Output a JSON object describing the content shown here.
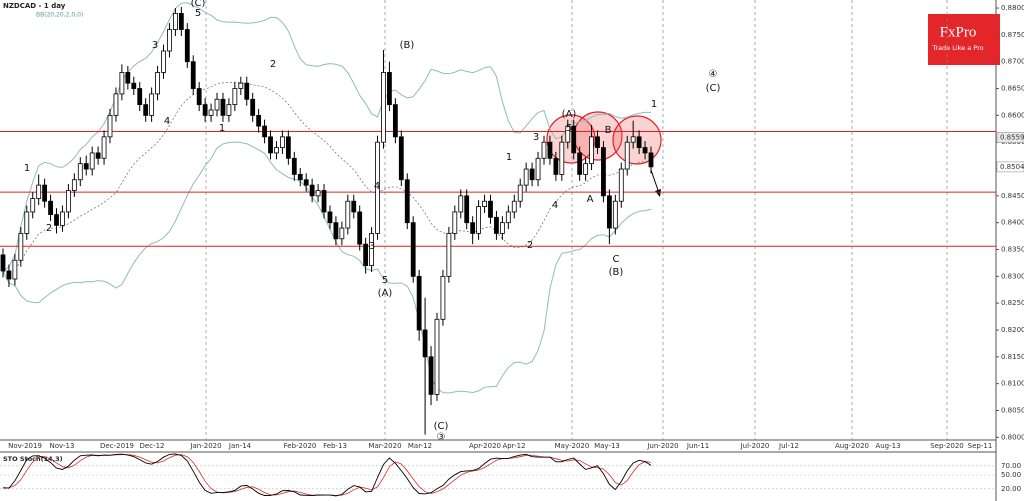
{
  "chart_data": {
    "type": "candlestick",
    "title": "NZDCAD - 1 day",
    "indicator": "BB(20,20,2,0,0)",
    "brand": "FxPro",
    "slogan": "Trade Like a Pro",
    "ylim": [
      0.7995,
      0.8815
    ],
    "yticks": [
      {
        "value": 0.88,
        "label": "0.8800"
      },
      {
        "value": 0.875,
        "label": "0.8750"
      },
      {
        "value": 0.87,
        "label": "0.8700"
      },
      {
        "value": 0.865,
        "label": "0.8650"
      },
      {
        "value": 0.86,
        "label": "0.8600"
      },
      {
        "value": 0.855,
        "label": "0.8550"
      },
      {
        "value": 0.85,
        "label": "0.8500"
      },
      {
        "value": 0.845,
        "label": "0.8450"
      },
      {
        "value": 0.84,
        "label": "0.8400"
      },
      {
        "value": 0.835,
        "label": "0.8350"
      },
      {
        "value": 0.83,
        "label": "0.8300"
      },
      {
        "value": 0.825,
        "label": "0.8250"
      },
      {
        "value": 0.82,
        "label": "0.8200"
      },
      {
        "value": 0.815,
        "label": "0.8150"
      },
      {
        "value": 0.81,
        "label": "0.8100"
      },
      {
        "value": 0.805,
        "label": "0.8050"
      },
      {
        "value": 0.8,
        "label": "0.8000"
      }
    ],
    "price_markers": [
      0.8559,
      0.8504
    ],
    "levels": [
      0.857,
      0.8457,
      0.8356
    ],
    "x_labels": [
      "Nov-2019",
      "Nov-13",
      "Dec-2019",
      "Dec-12",
      "Jan-2020",
      "Jan-14",
      "Feb-2020",
      "Feb-13",
      "Mar-2020",
      "Mar-12",
      "Apr-2020",
      "Apr-12",
      "May-2020",
      "May-13",
      "Jun-2020",
      "Jun-11",
      "Jul-2020",
      "Jul-12",
      "Aug-2020",
      "Aug-13",
      "Sep-2020",
      "Sep-11"
    ],
    "wave_labels": [
      "(C)",
      "5",
      "3",
      "4",
      "1",
      "2",
      "2",
      "1",
      "(B)",
      "4",
      "3",
      "5",
      "(A)",
      "(C)",
      "③",
      "1",
      "2",
      "3",
      "(A)",
      "5",
      "4",
      "A",
      "B",
      "C",
      "(B)",
      "1",
      "④",
      "(C)"
    ],
    "ohlc": [
      [
        0.834,
        0.8352,
        0.8298,
        0.831
      ],
      [
        0.831,
        0.8322,
        0.828,
        0.8295
      ],
      [
        0.8295,
        0.8342,
        0.8283,
        0.833
      ],
      [
        0.833,
        0.8392,
        0.8318,
        0.838
      ],
      [
        0.838,
        0.8432,
        0.8368,
        0.842
      ],
      [
        0.842,
        0.8457,
        0.8408,
        0.8445
      ],
      [
        0.8445,
        0.849,
        0.8433,
        0.847
      ],
      [
        0.847,
        0.8482,
        0.8428,
        0.844
      ],
      [
        0.844,
        0.8452,
        0.8403,
        0.8415
      ],
      [
        0.8415,
        0.8427,
        0.838,
        0.8395
      ],
      [
        0.8395,
        0.8432,
        0.8383,
        0.842
      ],
      [
        0.842,
        0.8472,
        0.8408,
        0.846
      ],
      [
        0.846,
        0.8492,
        0.8448,
        0.848
      ],
      [
        0.848,
        0.8522,
        0.8468,
        0.851
      ],
      [
        0.851,
        0.8525,
        0.8488,
        0.85
      ],
      [
        0.85,
        0.8542,
        0.8488,
        0.853
      ],
      [
        0.853,
        0.8542,
        0.8508,
        0.852
      ],
      [
        0.852,
        0.8572,
        0.8508,
        0.856
      ],
      [
        0.856,
        0.8612,
        0.8548,
        0.86
      ],
      [
        0.86,
        0.8652,
        0.8588,
        0.864
      ],
      [
        0.864,
        0.8695,
        0.8628,
        0.868
      ],
      [
        0.868,
        0.8692,
        0.8648,
        0.866
      ],
      [
        0.866,
        0.8672,
        0.8638,
        0.865
      ],
      [
        0.865,
        0.8662,
        0.8608,
        0.862
      ],
      [
        0.862,
        0.8632,
        0.8588,
        0.86
      ],
      [
        0.86,
        0.8652,
        0.8588,
        0.864
      ],
      [
        0.864,
        0.8692,
        0.8628,
        0.868
      ],
      [
        0.868,
        0.8732,
        0.8668,
        0.872
      ],
      [
        0.872,
        0.8772,
        0.8708,
        0.876
      ],
      [
        0.876,
        0.88,
        0.8748,
        0.879
      ],
      [
        0.879,
        0.8802,
        0.8748,
        0.876
      ],
      [
        0.876,
        0.8772,
        0.8688,
        0.87
      ],
      [
        0.87,
        0.8712,
        0.8638,
        0.865
      ],
      [
        0.865,
        0.8662,
        0.8608,
        0.862
      ],
      [
        0.862,
        0.8632,
        0.8588,
        0.86
      ],
      [
        0.86,
        0.8622,
        0.8588,
        0.861
      ],
      [
        0.861,
        0.8642,
        0.8598,
        0.863
      ],
      [
        0.863,
        0.8642,
        0.8588,
        0.86
      ],
      [
        0.86,
        0.8632,
        0.8588,
        0.862
      ],
      [
        0.862,
        0.8662,
        0.8608,
        0.865
      ],
      [
        0.865,
        0.8672,
        0.8638,
        0.866
      ],
      [
        0.866,
        0.8672,
        0.8618,
        0.863
      ],
      [
        0.863,
        0.8642,
        0.8588,
        0.86
      ],
      [
        0.86,
        0.8612,
        0.8568,
        0.858
      ],
      [
        0.858,
        0.8592,
        0.8548,
        0.856
      ],
      [
        0.856,
        0.8572,
        0.8518,
        0.853
      ],
      [
        0.853,
        0.8552,
        0.8518,
        0.854
      ],
      [
        0.854,
        0.8572,
        0.8528,
        0.856
      ],
      [
        0.856,
        0.8572,
        0.8508,
        0.852
      ],
      [
        0.852,
        0.8532,
        0.8478,
        0.849
      ],
      [
        0.849,
        0.8502,
        0.8468,
        0.848
      ],
      [
        0.848,
        0.8492,
        0.8458,
        0.847
      ],
      [
        0.847,
        0.8482,
        0.8438,
        0.845
      ],
      [
        0.845,
        0.8472,
        0.8438,
        0.846
      ],
      [
        0.846,
        0.8472,
        0.8408,
        0.842
      ],
      [
        0.842,
        0.8432,
        0.8388,
        0.84
      ],
      [
        0.84,
        0.8412,
        0.8358,
        0.837
      ],
      [
        0.837,
        0.8402,
        0.8358,
        0.839
      ],
      [
        0.839,
        0.8452,
        0.8378,
        0.844
      ],
      [
        0.844,
        0.8452,
        0.8408,
        0.842
      ],
      [
        0.842,
        0.8432,
        0.8348,
        0.836
      ],
      [
        0.836,
        0.8372,
        0.8305,
        0.832
      ],
      [
        0.832,
        0.8392,
        0.8308,
        0.838
      ],
      [
        0.838,
        0.8562,
        0.8368,
        0.855
      ],
      [
        0.855,
        0.8722,
        0.8538,
        0.868
      ],
      [
        0.868,
        0.87,
        0.8608,
        0.862
      ],
      [
        0.862,
        0.8632,
        0.8548,
        0.856
      ],
      [
        0.856,
        0.8572,
        0.8468,
        0.848
      ],
      [
        0.848,
        0.8492,
        0.8388,
        0.84
      ],
      [
        0.84,
        0.8412,
        0.8288,
        0.83
      ],
      [
        0.83,
        0.8312,
        0.818,
        0.82
      ],
      [
        0.82,
        0.826,
        0.8005,
        0.815
      ],
      [
        0.815,
        0.817,
        0.806,
        0.808
      ],
      [
        0.808,
        0.8232,
        0.8068,
        0.822
      ],
      [
        0.822,
        0.8312,
        0.8208,
        0.83
      ],
      [
        0.83,
        0.8392,
        0.8288,
        0.838
      ],
      [
        0.838,
        0.8432,
        0.8368,
        0.842
      ],
      [
        0.842,
        0.8462,
        0.8408,
        0.845
      ],
      [
        0.845,
        0.8462,
        0.8388,
        0.84
      ],
      [
        0.84,
        0.8412,
        0.836,
        0.838
      ],
      [
        0.838,
        0.8442,
        0.8368,
        0.843
      ],
      [
        0.843,
        0.8452,
        0.8418,
        0.844
      ],
      [
        0.844,
        0.8452,
        0.8398,
        0.841
      ],
      [
        0.841,
        0.8422,
        0.8368,
        0.838
      ],
      [
        0.838,
        0.8412,
        0.8368,
        0.84
      ],
      [
        0.84,
        0.8432,
        0.8388,
        0.842
      ],
      [
        0.842,
        0.8452,
        0.8408,
        0.844
      ],
      [
        0.844,
        0.8482,
        0.8428,
        0.847
      ],
      [
        0.847,
        0.8512,
        0.8458,
        0.85
      ],
      [
        0.85,
        0.8512,
        0.8468,
        0.848
      ],
      [
        0.848,
        0.8532,
        0.8468,
        0.852
      ],
      [
        0.852,
        0.8562,
        0.8508,
        0.855
      ],
      [
        0.855,
        0.8562,
        0.8508,
        0.852
      ],
      [
        0.852,
        0.8532,
        0.8478,
        0.849
      ],
      [
        0.849,
        0.8562,
        0.8478,
        0.855
      ],
      [
        0.855,
        0.8592,
        0.8538,
        0.858
      ],
      [
        0.858,
        0.8592,
        0.8518,
        0.853
      ],
      [
        0.853,
        0.8542,
        0.8478,
        0.849
      ],
      [
        0.849,
        0.8522,
        0.8478,
        0.851
      ],
      [
        0.851,
        0.8582,
        0.8498,
        0.856
      ],
      [
        0.856,
        0.8572,
        0.8528,
        0.854
      ],
      [
        0.854,
        0.8552,
        0.8438,
        0.845
      ],
      [
        0.845,
        0.8462,
        0.836,
        0.839
      ],
      [
        0.839,
        0.8452,
        0.8378,
        0.844
      ],
      [
        0.844,
        0.8512,
        0.8428,
        0.85
      ],
      [
        0.85,
        0.8562,
        0.8488,
        0.855
      ],
      [
        0.855,
        0.859,
        0.8538,
        0.856
      ],
      [
        0.856,
        0.8572,
        0.8528,
        0.854
      ],
      [
        0.854,
        0.8552,
        0.8518,
        0.853
      ],
      [
        0.853,
        0.8542,
        0.8492,
        0.8504
      ]
    ],
    "stochastic": {
      "title": "STO Stoch(14,3)",
      "ylim": [
        0,
        100
      ],
      "yticks": [
        {
          "value": 70,
          "label": "70.00"
        },
        {
          "value": 50,
          "label": "50.00"
        },
        {
          "value": 20,
          "label": "20.00"
        }
      ]
    }
  }
}
